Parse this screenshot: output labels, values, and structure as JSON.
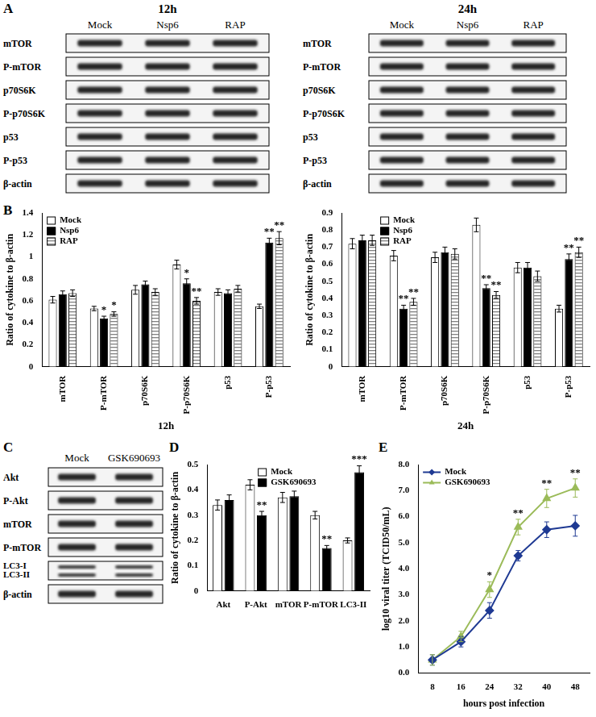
{
  "blots": [
    {
      "panel": "A",
      "title": "12h",
      "lanes": [
        "Mock",
        "Nsp6",
        "RAP"
      ],
      "rows": [
        "mTOR",
        "P-mTOR",
        "p70S6K",
        "P-p70S6K",
        "p53",
        "P-p53",
        "β-actin"
      ]
    },
    {
      "title": "24h",
      "lanes": [
        "Mock",
        "Nsp6",
        "RAP"
      ],
      "rows": [
        "mTOR",
        "P-mTOR",
        "p70S6K",
        "P-p70S6K",
        "p53",
        "P-p53",
        "β-actin"
      ]
    },
    {
      "panel": "C",
      "lanes": [
        "Mock",
        "GSK690693"
      ],
      "rows": [
        "Akt",
        "P-Akt",
        "mTOR",
        "P-mTOR",
        [
          "LC3-I",
          "LC3-II"
        ],
        "β-actin"
      ]
    }
  ],
  "chart_data": [
    {
      "panel": "B",
      "type": "bar",
      "x_label": "12h",
      "y_label": "Ratio of cytokine to β-actin",
      "categories": [
        "mTOR",
        "P-mTOR",
        "p70S6K",
        "P-p70S6K",
        "p53",
        "P-p53"
      ],
      "series": [
        {
          "name": "Mock",
          "color": "#ffffff",
          "values": [
            0.61,
            0.53,
            0.7,
            0.93,
            0.68,
            0.55
          ],
          "errors": [
            0.03,
            0.02,
            0.04,
            0.04,
            0.03,
            0.02
          ],
          "annotations": [
            null,
            null,
            null,
            null,
            null,
            null
          ]
        },
        {
          "name": "Nsp6",
          "color": "#000000",
          "values": [
            0.66,
            0.44,
            0.75,
            0.76,
            0.67,
            1.13
          ],
          "errors": [
            0.03,
            0.02,
            0.03,
            0.04,
            0.03,
            0.04
          ],
          "annotations": [
            null,
            "*",
            null,
            "*",
            null,
            "**"
          ]
        },
        {
          "name": "RAP",
          "color": "#808080",
          "line_style": "hatched",
          "values": [
            0.67,
            0.48,
            0.68,
            0.6,
            0.71,
            1.17
          ],
          "errors": [
            0.03,
            0.02,
            0.03,
            0.03,
            0.03,
            0.06
          ],
          "annotations": [
            null,
            "*",
            null,
            "**",
            null,
            "**"
          ]
        }
      ],
      "ylim": [
        0,
        1.4
      ],
      "yticks": [
        0,
        0.2,
        0.4,
        0.6,
        0.8,
        1,
        1.2,
        1.4
      ],
      "grid": false,
      "legend": "upper left"
    },
    {
      "type": "bar",
      "x_label": "24h",
      "y_label": "Ratio of cytokine to β-actin",
      "categories": [
        "mTOR",
        "P-mTOR",
        "p70S6K",
        "P-p70S6K",
        "p53",
        "P-p53"
      ],
      "series": [
        {
          "name": "Mock",
          "color": "#ffffff",
          "values": [
            0.72,
            0.65,
            0.64,
            0.83,
            0.58,
            0.34
          ],
          "errors": [
            0.03,
            0.03,
            0.03,
            0.04,
            0.03,
            0.02
          ],
          "annotations": [
            null,
            null,
            null,
            null,
            null,
            null
          ]
        },
        {
          "name": "Nsp6",
          "color": "#000000",
          "values": [
            0.74,
            0.34,
            0.67,
            0.46,
            0.58,
            0.63
          ],
          "errors": [
            0.03,
            0.02,
            0.03,
            0.02,
            0.03,
            0.03
          ],
          "annotations": [
            null,
            "**",
            null,
            "**",
            null,
            "**"
          ]
        },
        {
          "name": "RAP",
          "color": "#808080",
          "line_style": "hatched",
          "values": [
            0.74,
            0.38,
            0.66,
            0.42,
            0.53,
            0.67
          ],
          "errors": [
            0.03,
            0.02,
            0.03,
            0.02,
            0.03,
            0.03
          ],
          "annotations": [
            null,
            "**",
            null,
            "**",
            null,
            "**"
          ]
        }
      ],
      "ylim": [
        0,
        0.9
      ],
      "yticks": [
        0,
        0.1,
        0.2,
        0.3,
        0.4,
        0.5,
        0.6,
        0.7,
        0.8,
        0.9
      ],
      "grid": false,
      "legend": "upper left"
    },
    {
      "panel": "D",
      "type": "bar",
      "y_label": "Ratio of cytokine to β-actin",
      "categories": [
        "Akt",
        "P-Akt",
        "mTOR",
        "P-mTOR",
        "LC3-II"
      ],
      "series": [
        {
          "name": "Mock",
          "color": "#ffffff",
          "values": [
            0.34,
            0.42,
            0.37,
            0.3,
            0.2
          ],
          "errors": [
            0.02,
            0.02,
            0.02,
            0.015,
            0.01
          ],
          "annotations": [
            null,
            null,
            null,
            null,
            null
          ]
        },
        {
          "name": "GSK690693",
          "color": "#000000",
          "values": [
            0.36,
            0.3,
            0.375,
            0.17,
            0.47
          ],
          "errors": [
            0.02,
            0.015,
            0.02,
            0.01,
            0.025
          ],
          "annotations": [
            null,
            "**",
            null,
            "**",
            "***"
          ]
        }
      ],
      "ylim": [
        0,
        0.5
      ],
      "yticks": [
        0,
        0.1,
        0.2,
        0.3,
        0.4,
        0.5
      ],
      "grid": false,
      "legend": "upper left"
    },
    {
      "panel": "E",
      "type": "line",
      "x_label": "hours post infection",
      "y_label": "log10 viral titer (TCID50/mL)",
      "x": [
        8,
        16,
        24,
        32,
        40,
        48
      ],
      "series": [
        {
          "name": "Mock",
          "color": "#1f3a93",
          "marker": "diamond",
          "values": [
            0.5,
            1.2,
            2.4,
            4.5,
            5.5,
            5.65
          ],
          "errors": [
            0.2,
            0.2,
            0.3,
            0.2,
            0.3,
            0.4
          ],
          "annotations": [
            null,
            null,
            null,
            null,
            null,
            null
          ]
        },
        {
          "name": "GSK690693",
          "color": "#9bbb59",
          "marker": "triangle",
          "values": [
            0.5,
            1.4,
            3.2,
            5.6,
            6.7,
            7.1
          ],
          "errors": [
            0.2,
            0.2,
            0.3,
            0.3,
            0.35,
            0.35
          ],
          "annotations": [
            null,
            null,
            "*",
            "**",
            "**",
            "**"
          ]
        }
      ],
      "xlim": [
        4,
        52
      ],
      "xticks": [
        8,
        16,
        24,
        32,
        40,
        48
      ],
      "ylim": [
        0,
        8
      ],
      "yticks": [
        {
          "value": 0,
          "label": "0.0"
        },
        {
          "value": 1,
          "label": "1.0"
        },
        {
          "value": 2,
          "label": "2.0"
        },
        {
          "value": 3,
          "label": "3.0"
        },
        {
          "value": 4,
          "label": "4.0"
        },
        {
          "value": 5,
          "label": "5.0"
        },
        {
          "value": 6,
          "label": "6.0"
        },
        {
          "value": 7,
          "label": "7.0"
        },
        {
          "value": 8,
          "label": "8.0"
        }
      ],
      "grid": false,
      "legend": "upper left"
    }
  ]
}
